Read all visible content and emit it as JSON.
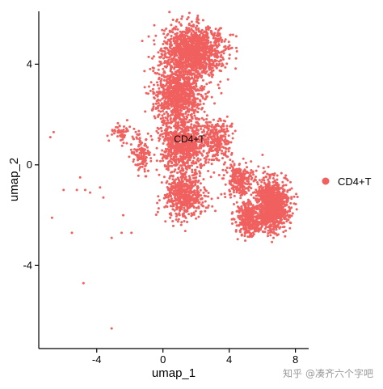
{
  "chart_data": {
    "type": "scatter",
    "xlabel": "umap_1",
    "ylabel": "umap_2",
    "xlim": [
      -7.5,
      8.8
    ],
    "ylim": [
      -7.3,
      6.1
    ],
    "x_ticks": [
      -4,
      0,
      4,
      8
    ],
    "y_ticks": [
      -4,
      0,
      4
    ],
    "x_tick_labels": [
      "-4",
      "0",
      "4",
      "8"
    ],
    "y_tick_labels": [
      "-4",
      "0",
      "4"
    ],
    "grid": false,
    "legend_position": "right",
    "series": [
      {
        "name": "CD4+T",
        "color": "#f0605f",
        "cluster_label": "CD4+T",
        "cluster_label_x": 1.6,
        "cluster_label_y": 0.9,
        "regions": [
          {
            "cx": 1.8,
            "cy": 4.5,
            "sx": 1.6,
            "sy": 0.9,
            "n": 1400
          },
          {
            "cx": 0.9,
            "cy": 2.8,
            "sx": 1.3,
            "sy": 1.0,
            "n": 900
          },
          {
            "cx": 1.2,
            "cy": 0.8,
            "sx": 1.2,
            "sy": 1.0,
            "n": 800
          },
          {
            "cx": 1.3,
            "cy": -1.2,
            "sx": 1.1,
            "sy": 0.8,
            "n": 550
          },
          {
            "cx": 3.2,
            "cy": 1.0,
            "sx": 0.8,
            "sy": 0.7,
            "n": 300
          },
          {
            "cx": 4.6,
            "cy": -0.6,
            "sx": 0.8,
            "sy": 0.6,
            "n": 250
          },
          {
            "cx": 6.6,
            "cy": -1.6,
            "sx": 0.9,
            "sy": 0.9,
            "n": 1100
          },
          {
            "cx": 5.2,
            "cy": -2.2,
            "sx": 0.7,
            "sy": 0.6,
            "n": 350
          },
          {
            "cx": -2.5,
            "cy": 1.3,
            "sx": 0.5,
            "sy": 0.4,
            "n": 60
          },
          {
            "cx": -1.3,
            "cy": 0.4,
            "sx": 0.5,
            "sy": 0.7,
            "n": 120
          }
        ],
        "outliers": [
          [
            -6.6,
            1.3
          ],
          [
            -6.8,
            1.1
          ],
          [
            -6.0,
            -1.0
          ],
          [
            -5.2,
            -1.0
          ],
          [
            -4.7,
            -1.0
          ],
          [
            -4.4,
            -1.1
          ],
          [
            -3.8,
            -0.9
          ],
          [
            -3.6,
            -1.3
          ],
          [
            -6.7,
            -2.1
          ],
          [
            -5.5,
            -2.7
          ],
          [
            -3.1,
            -2.9
          ],
          [
            -2.5,
            -2.7
          ],
          [
            -4.8,
            -4.7
          ],
          [
            -3.1,
            -6.5
          ],
          [
            -2.4,
            -2.0
          ],
          [
            -1.9,
            -2.7
          ],
          [
            -5.0,
            -0.5
          ]
        ]
      }
    ]
  },
  "legend": {
    "entries": [
      {
        "label": "CD4+T",
        "color": "#f0605f"
      }
    ]
  },
  "watermark": "知乎 @凑齐六个字吧"
}
